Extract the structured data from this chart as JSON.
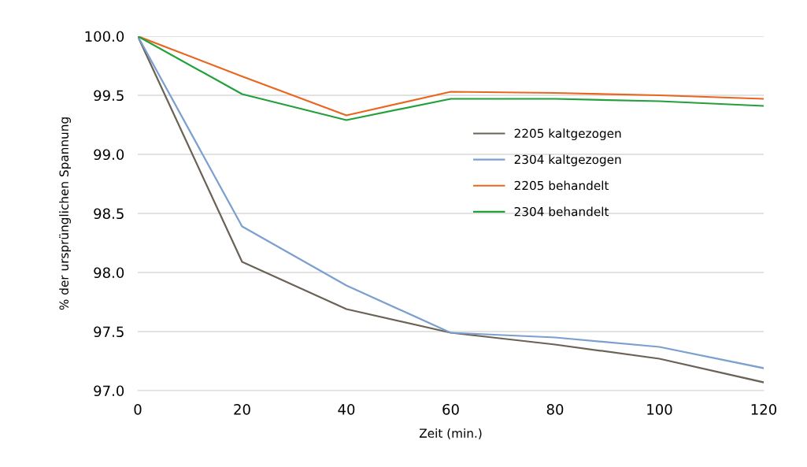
{
  "chart_data": {
    "type": "line",
    "xlabel": "Zeit (min.)",
    "ylabel": "% der ursprünglichen Spannung",
    "x": [
      0,
      20,
      40,
      60,
      80,
      100,
      120
    ],
    "xlim": [
      0,
      120
    ],
    "xticks": [
      0,
      20,
      40,
      60,
      80,
      100,
      120
    ],
    "ylim": [
      97.0,
      100.0
    ],
    "yticks": [
      {
        "value": 97.0,
        "label": "97.0"
      },
      {
        "value": 97.5,
        "label": "97.5"
      },
      {
        "value": 98.0,
        "label": "98.0"
      },
      {
        "value": 98.5,
        "label": "98.5"
      },
      {
        "value": 99.0,
        "label": "99.0"
      },
      {
        "value": 99.5,
        "label": "99.5"
      },
      {
        "value": 100.0,
        "label": "100.0"
      }
    ],
    "grid": "y",
    "legend": "right",
    "marker": "none",
    "line_style": "solid",
    "series": [
      {
        "name": "2205 kaltgezogen",
        "color": "#6b6256",
        "values": [
          100.0,
          98.09,
          97.69,
          97.49,
          97.39,
          97.27,
          97.07
        ]
      },
      {
        "name": "2304 kaltgezogen",
        "color": "#7b9fcf",
        "values": [
          100.0,
          98.39,
          97.89,
          97.49,
          97.45,
          97.37,
          97.19
        ]
      },
      {
        "name": "2205 behandelt",
        "color": "#e8661f",
        "values": [
          100.0,
          99.66,
          99.33,
          99.53,
          99.52,
          99.5,
          99.47
        ]
      },
      {
        "name": "2304 behandelt",
        "color": "#22a03a",
        "values": [
          100.0,
          99.51,
          99.29,
          99.47,
          99.47,
          99.45,
          99.41
        ]
      }
    ]
  }
}
